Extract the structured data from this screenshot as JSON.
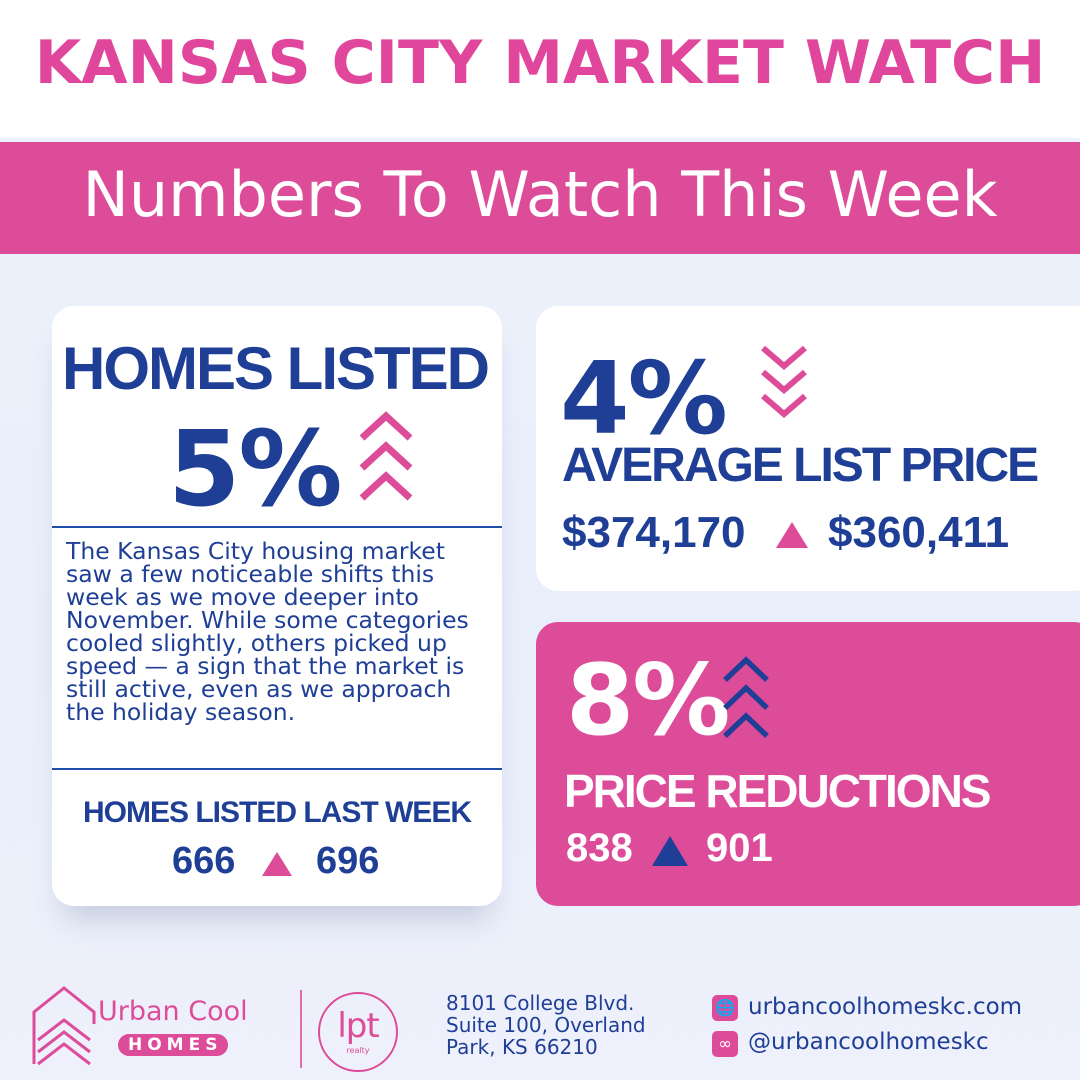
{
  "header": {
    "title": "KANSAS CITY MARKET WATCH",
    "subtitle": "Numbers To Watch This Week"
  },
  "homes_listed": {
    "label": "HOMES LISTED",
    "percent": "5%",
    "trend_icon": "chevron-triple-up-icon",
    "description": "The Kansas City housing market saw a few noticeable shifts this week as we move deeper into November. While some categories cooled slightly, others picked up speed — a sign that the market is still active, even as we approach the holiday season.",
    "last_week_label": "HOMES LISTED LAST WEEK",
    "previous_value": "666",
    "current_value": "696",
    "change_icon": "triangle-up-icon"
  },
  "average_list_price": {
    "percent": "4%",
    "trend_icon": "chevron-triple-down-icon",
    "label": "AVERAGE LIST PRICE",
    "previous_value": "$374,170",
    "current_value": "$360,411",
    "change_icon": "triangle-up-icon"
  },
  "price_reductions": {
    "percent": "8%",
    "trend_icon": "chevron-triple-up-icon",
    "label": "PRICE REDUCTIONS",
    "previous_value": "838",
    "current_value": "901",
    "change_icon": "triangle-up-icon"
  },
  "footer": {
    "brand_name": "Urban Cool",
    "brand_sub": "HOMES",
    "partner_logo": "lpt",
    "partner_sub": "realty",
    "address_lines": [
      "8101 College Blvd.",
      "Suite 100, Overland",
      "Park, KS 66210"
    ],
    "website": "urbancoolhomeskc.com",
    "website_icon": "globe-icon",
    "social": "@urbancoolhomeskc",
    "social_icon": "link-icon"
  },
  "colors": {
    "pink": "#dd4c99",
    "navy": "#1f3f96",
    "background": "#eef2fb"
  }
}
